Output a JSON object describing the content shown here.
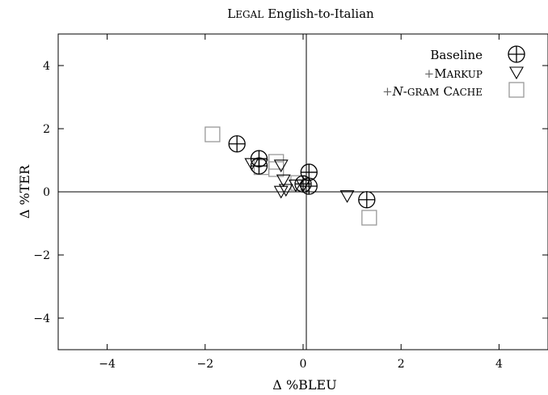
{
  "chart_data": {
    "type": "scatter",
    "title": "LEGAL English-to-Italian",
    "xlabel": "Δ %BLEU",
    "ylabel": "Δ %TER",
    "xlim": [
      -5,
      5
    ],
    "ylim": [
      -5,
      5
    ],
    "xticks": [
      -4,
      -2,
      0,
      2,
      4
    ],
    "yticks": [
      -4,
      -2,
      0,
      2,
      4
    ],
    "tick_labels_x": [
      "−4",
      "−2",
      "0",
      "2",
      "4"
    ],
    "tick_labels_y": [
      "−4",
      "−2",
      "0",
      "2",
      "4"
    ],
    "grid": false,
    "legend_position": "top-right",
    "series": [
      {
        "name": "Baseline",
        "marker": "circle-plus",
        "color": "#000000",
        "points": [
          [
            -1.35,
            1.52
          ],
          [
            -0.9,
            1.05
          ],
          [
            -0.9,
            0.82
          ],
          [
            0.0,
            0.25
          ],
          [
            0.12,
            0.62
          ],
          [
            0.12,
            0.18
          ],
          [
            1.3,
            -0.25
          ]
        ]
      },
      {
        "name": "+MARKUP",
        "marker": "triangle-down",
        "color": "#000000",
        "points": [
          [
            -1.05,
            0.9
          ],
          [
            -0.45,
            0.85
          ],
          [
            -0.4,
            0.38
          ],
          [
            -0.45,
            0.02
          ],
          [
            -0.35,
            0.08
          ],
          [
            -0.15,
            0.22
          ],
          [
            0.0,
            0.22
          ],
          [
            0.9,
            -0.12
          ]
        ]
      },
      {
        "name": "+N-GRAM CACHE",
        "marker": "square",
        "color": "#999999",
        "points": [
          [
            -1.85,
            1.82
          ],
          [
            -0.85,
            0.78
          ],
          [
            -0.55,
            0.95
          ],
          [
            -0.55,
            0.72
          ],
          [
            -0.1,
            0.28
          ],
          [
            1.35,
            -0.82
          ]
        ]
      }
    ],
    "legend": {
      "baseline": "Baseline",
      "markup_plus": "+",
      "markup_first": "M",
      "markup_rest": "ARKUP",
      "ngram_plus": "+",
      "ngram_n": "N",
      "ngram_dash": "-",
      "ngram_gram": "GRAM",
      "ngram_c": "C",
      "ngram_ache": "ACHE"
    },
    "title_parts": {
      "first": "L",
      "rest": "EGAL",
      "tail": "English-to-Italian"
    }
  }
}
